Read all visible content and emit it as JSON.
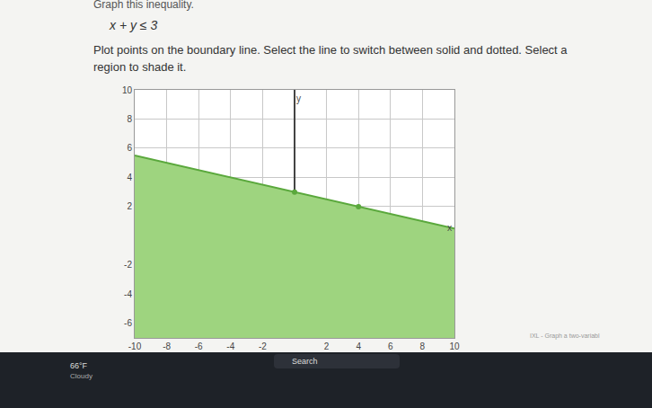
{
  "header": {
    "title": "Graph this inequality.",
    "inequality": "x + y ≤ 3",
    "instructions": "Plot points on the boundary line. Select the line to switch between solid and dotted. Select a region to shade it."
  },
  "chart_data": {
    "type": "area",
    "x_label": "x",
    "y_label": "y",
    "x": [
      -10,
      10
    ],
    "values": [
      5.5,
      0.5
    ],
    "points": {
      "x": [
        0,
        4
      ],
      "values": [
        3,
        2
      ]
    },
    "color": "#9ed47f",
    "line_color": "#5aa83c",
    "line_style": "solid",
    "xlim": [
      -10,
      10
    ],
    "ylim": [
      -7,
      10
    ],
    "xticks": [
      -10,
      -8,
      -6,
      -4,
      -2,
      2,
      4,
      6,
      8,
      10
    ],
    "yticks": [
      -6,
      -4,
      -2,
      2,
      4,
      6,
      8,
      10
    ],
    "grid": true
  },
  "taskbar": {
    "temperature": "66°F",
    "weather": "Cloudy",
    "search": "Search",
    "window": "IXL - Graph a two-variabl"
  }
}
